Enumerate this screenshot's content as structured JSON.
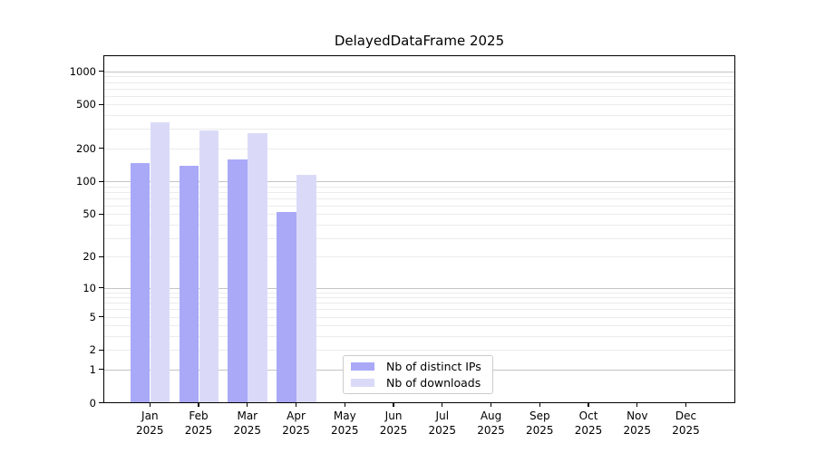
{
  "chart_data": {
    "type": "bar",
    "title": "DelayedDataFrame 2025",
    "xlabel": "",
    "ylabel": "",
    "year": "2025",
    "categories": [
      "Jan",
      "Feb",
      "Mar",
      "Apr",
      "May",
      "Jun",
      "Jul",
      "Aug",
      "Sep",
      "Oct",
      "Nov",
      "Dec"
    ],
    "series": [
      {
        "name": "Nb of distinct IPs",
        "color": "#a9a9f8",
        "values": [
          146,
          140,
          158,
          52,
          null,
          null,
          null,
          null,
          null,
          null,
          null,
          null
        ]
      },
      {
        "name": "Nb of downloads",
        "color": "#dadaf8",
        "values": [
          343,
          293,
          275,
          115,
          null,
          null,
          null,
          null,
          null,
          null,
          null,
          null
        ]
      }
    ],
    "yticks": [
      0,
      1,
      2,
      5,
      10,
      20,
      50,
      100,
      200,
      500,
      1000
    ],
    "scale": "log1p",
    "ylim": [
      0,
      1413
    ],
    "grid": "major-and-minor",
    "legend_position": "lower-center",
    "colors": {
      "major_grid": "#c4c4c4",
      "minor_grid": "#ebebeb",
      "spine": "#000000",
      "background": "#ffffff"
    }
  }
}
